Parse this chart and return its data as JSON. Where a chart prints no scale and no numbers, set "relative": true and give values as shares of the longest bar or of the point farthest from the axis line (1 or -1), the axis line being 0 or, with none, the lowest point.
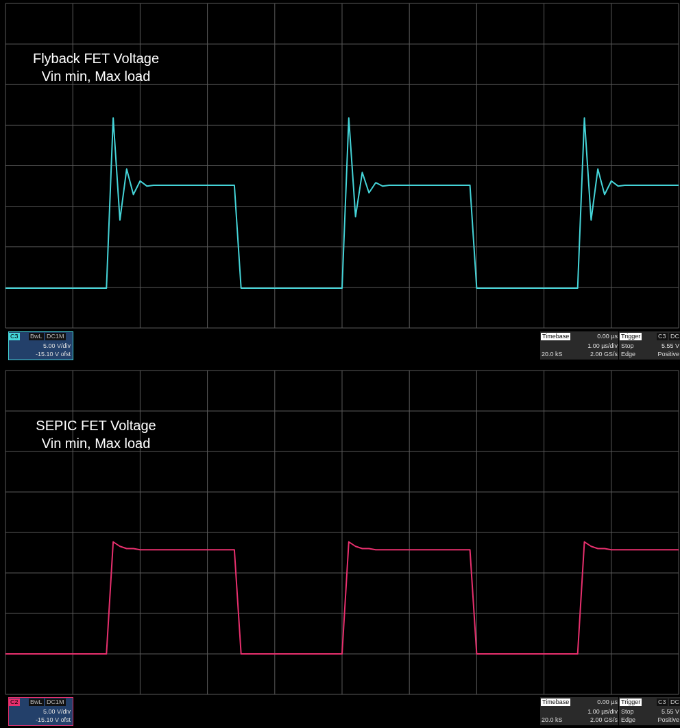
{
  "chart_data": [
    {
      "type": "line",
      "title": "Flyback FET Voltage",
      "subtitle": "Vin min, Max load",
      "relative": true,
      "grid": true,
      "categories": [
        null,
        null,
        null,
        null,
        null,
        null,
        null,
        null,
        null,
        null,
        null,
        null,
        null,
        null,
        null,
        null,
        null,
        null,
        null,
        null,
        null,
        null,
        null,
        null,
        null,
        null,
        null,
        null,
        null,
        null,
        null,
        null,
        null,
        null,
        null,
        null,
        null,
        null,
        null,
        null,
        null,
        null,
        null,
        null,
        null,
        null,
        null,
        null,
        null,
        null,
        null,
        null,
        null,
        null,
        null,
        null,
        null,
        null,
        null,
        null,
        null,
        null,
        null,
        null,
        null,
        null,
        null,
        null,
        null,
        null,
        null,
        null,
        null,
        null,
        null,
        null,
        null,
        null,
        null,
        null,
        null,
        null,
        null,
        null,
        null,
        null,
        null,
        null,
        null,
        null,
        null,
        null,
        null,
        null,
        null,
        null,
        null,
        null,
        null,
        null,
        null
      ],
      "series": [
        {
          "color": "#45d4d8",
          "values": [
            0,
            0,
            0,
            0,
            0,
            0,
            0,
            0,
            0,
            0,
            0,
            0,
            0,
            0,
            0,
            0,
            1,
            0.4,
            0.7,
            0.55,
            0.63,
            0.6,
            0.605,
            0.605,
            0.605,
            0.605,
            0.605,
            0.605,
            0.605,
            0.605,
            0.605,
            0.605,
            0.605,
            0.605,
            0.605,
            0,
            0,
            0,
            0,
            0,
            0,
            0,
            0,
            0,
            0,
            0,
            0,
            0,
            0,
            0,
            0,
            1,
            0.42,
            0.68,
            0.56,
            0.62,
            0.6,
            0.605,
            0.605,
            0.605,
            0.605,
            0.605,
            0.605,
            0.605,
            0.605,
            0.605,
            0.605,
            0.605,
            0.605,
            0.605,
            0,
            0,
            0,
            0,
            0,
            0,
            0,
            0,
            0,
            0,
            0,
            0,
            0,
            0,
            0,
            0,
            1,
            0.4,
            0.7,
            0.55,
            0.63,
            0.6,
            0.605,
            0.605,
            0.605,
            0.605,
            0.605,
            0.605,
            0.605,
            0.605,
            0.605
          ]
        }
      ],
      "annotations": [
        "C3",
        "BwL",
        "DC1M",
        "5.00 V/div",
        "-15.10 V ofst",
        "Timebase",
        "0.00 µs",
        "1.00 µs/div",
        "20.0 kS",
        "2.00 GS/s",
        "Trigger",
        "C3",
        "DC",
        "Stop",
        "5.55 V",
        "Edge",
        "Positive"
      ]
    },
    {
      "type": "line",
      "title": "SEPIC FET Voltage",
      "subtitle": "Vin min, Max load",
      "relative": true,
      "grid": true,
      "categories": [
        null,
        null,
        null,
        null,
        null,
        null,
        null,
        null,
        null,
        null,
        null,
        null,
        null,
        null,
        null,
        null,
        null,
        null,
        null,
        null,
        null,
        null,
        null,
        null,
        null,
        null,
        null,
        null,
        null,
        null,
        null,
        null,
        null,
        null,
        null,
        null,
        null,
        null,
        null,
        null,
        null,
        null,
        null,
        null,
        null,
        null,
        null,
        null,
        null,
        null,
        null,
        null,
        null,
        null,
        null,
        null,
        null,
        null,
        null,
        null,
        null,
        null,
        null,
        null,
        null,
        null,
        null,
        null,
        null,
        null,
        null,
        null,
        null,
        null,
        null,
        null,
        null,
        null,
        null,
        null,
        null,
        null,
        null,
        null,
        null,
        null,
        null,
        null,
        null,
        null,
        null,
        null,
        null,
        null,
        null,
        null,
        null,
        null,
        null,
        null,
        null
      ],
      "series": [
        {
          "color": "#e8306e",
          "values": [
            0,
            0,
            0,
            0,
            0,
            0,
            0,
            0,
            0,
            0,
            0,
            0,
            0,
            0,
            0,
            0,
            1,
            0.96,
            0.94,
            0.94,
            0.93,
            0.93,
            0.93,
            0.93,
            0.93,
            0.93,
            0.93,
            0.93,
            0.93,
            0.93,
            0.93,
            0.93,
            0.93,
            0.93,
            0.93,
            0,
            0,
            0,
            0,
            0,
            0,
            0,
            0,
            0,
            0,
            0,
            0,
            0,
            0,
            0,
            0,
            1,
            0.96,
            0.94,
            0.94,
            0.93,
            0.93,
            0.93,
            0.93,
            0.93,
            0.93,
            0.93,
            0.93,
            0.93,
            0.93,
            0.93,
            0.93,
            0.93,
            0.93,
            0.93,
            0,
            0,
            0,
            0,
            0,
            0,
            0,
            0,
            0,
            0,
            0,
            0,
            0,
            0,
            0,
            0,
            1,
            0.96,
            0.94,
            0.94,
            0.93,
            0.93,
            0.93,
            0.93,
            0.93,
            0.93,
            0.93,
            0.93,
            0.93,
            0.93,
            0.93
          ]
        }
      ],
      "annotations": [
        "C2",
        "BwL",
        "DC1M",
        "5.00 V/div",
        "-15.10 V ofst",
        "Timebase",
        "0.00 µs",
        "1.00 µs/div",
        "20.0 kS",
        "2.00 GS/s",
        "Trigger",
        "C3",
        "DC",
        "Stop",
        "5.55 V",
        "Edge",
        "Positive"
      ]
    }
  ]
}
